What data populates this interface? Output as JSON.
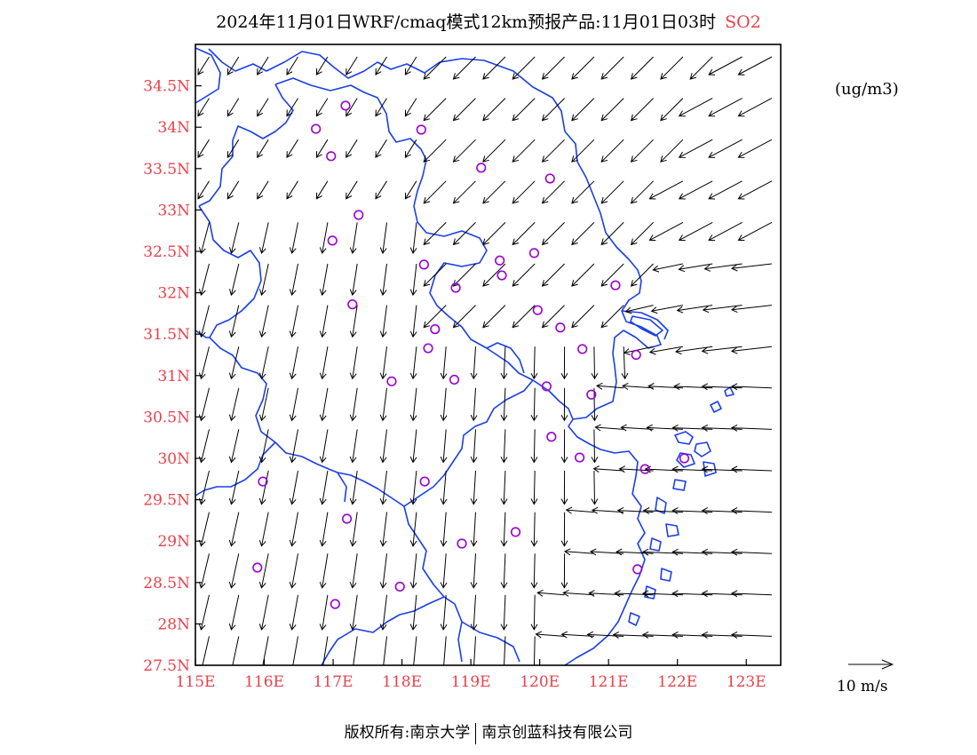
{
  "title": {
    "main": "2024年11月01日WRF/cmaq模式12km预报产品:11月01日03时",
    "pollutant": "SO2"
  },
  "unit": "(ug/m3)",
  "credit": {
    "left": "版权所有:南京大学",
    "right": "南京创蓝科技有限公司"
  },
  "colors": {
    "tick_labels": "#e8404a",
    "boundaries": "#1a3ee8",
    "stations": "#9b00d3",
    "arrows": "#000000"
  },
  "map": {
    "lon_range": [
      115,
      123.5
    ],
    "lat_range": [
      27.5,
      35
    ],
    "lon_ticks": [
      {
        "value": 115,
        "label": "115E"
      },
      {
        "value": 116,
        "label": "116E"
      },
      {
        "value": 117,
        "label": "117E"
      },
      {
        "value": 118,
        "label": "118E"
      },
      {
        "value": 119,
        "label": "119E"
      },
      {
        "value": 120,
        "label": "120E"
      },
      {
        "value": 121,
        "label": "121E"
      },
      {
        "value": 122,
        "label": "122E"
      },
      {
        "value": 123,
        "label": "123E"
      }
    ],
    "lat_ticks": [
      {
        "value": 34.5,
        "label": "34.5N"
      },
      {
        "value": 34,
        "label": "34N"
      },
      {
        "value": 33.5,
        "label": "33.5N"
      },
      {
        "value": 33,
        "label": "33N"
      },
      {
        "value": 32.5,
        "label": "32.5N"
      },
      {
        "value": 32,
        "label": "32N"
      },
      {
        "value": 31.5,
        "label": "31.5N"
      },
      {
        "value": 31,
        "label": "31N"
      },
      {
        "value": 30.5,
        "label": "30.5N"
      },
      {
        "value": 30,
        "label": "30N"
      },
      {
        "value": 29.5,
        "label": "29.5N"
      },
      {
        "value": 29,
        "label": "29N"
      },
      {
        "value": 28.5,
        "label": "28.5N"
      },
      {
        "value": 28,
        "label": "28N"
      },
      {
        "value": 27.5,
        "label": "27.5N"
      }
    ],
    "wind_legend": {
      "label": "10 m/s",
      "speed": 10
    },
    "stations": [
      {
        "lon": 116.75,
        "lat": 33.98
      },
      {
        "lon": 117.18,
        "lat": 34.26
      },
      {
        "lon": 116.97,
        "lat": 33.65
      },
      {
        "lon": 118.28,
        "lat": 33.97
      },
      {
        "lon": 119.15,
        "lat": 33.51
      },
      {
        "lon": 120.15,
        "lat": 33.38
      },
      {
        "lon": 117.37,
        "lat": 32.94
      },
      {
        "lon": 116.99,
        "lat": 32.63
      },
      {
        "lon": 118.32,
        "lat": 32.34
      },
      {
        "lon": 119.42,
        "lat": 32.39
      },
      {
        "lon": 119.92,
        "lat": 32.48
      },
      {
        "lon": 119.45,
        "lat": 32.21
      },
      {
        "lon": 118.78,
        "lat": 32.06
      },
      {
        "lon": 117.28,
        "lat": 31.86
      },
      {
        "lon": 119.97,
        "lat": 31.79
      },
      {
        "lon": 118.38,
        "lat": 31.33
      },
      {
        "lon": 118.48,
        "lat": 31.56
      },
      {
        "lon": 120.3,
        "lat": 31.58
      },
      {
        "lon": 120.62,
        "lat": 31.32
      },
      {
        "lon": 121.1,
        "lat": 32.09
      },
      {
        "lon": 121.4,
        "lat": 31.25
      },
      {
        "lon": 117.85,
        "lat": 30.93
      },
      {
        "lon": 118.76,
        "lat": 30.95
      },
      {
        "lon": 120.1,
        "lat": 30.87
      },
      {
        "lon": 120.75,
        "lat": 30.77
      },
      {
        "lon": 120.17,
        "lat": 30.26
      },
      {
        "lon": 120.58,
        "lat": 30.01
      },
      {
        "lon": 121.53,
        "lat": 29.87
      },
      {
        "lon": 122.1,
        "lat": 30.0
      },
      {
        "lon": 118.33,
        "lat": 29.72
      },
      {
        "lon": 115.98,
        "lat": 29.72
      },
      {
        "lon": 117.2,
        "lat": 29.27
      },
      {
        "lon": 118.87,
        "lat": 28.97
      },
      {
        "lon": 119.65,
        "lat": 29.11
      },
      {
        "lon": 115.9,
        "lat": 28.68
      },
      {
        "lon": 117.97,
        "lat": 28.45
      },
      {
        "lon": 117.03,
        "lat": 28.24
      },
      {
        "lon": 121.42,
        "lat": 28.66
      }
    ]
  }
}
